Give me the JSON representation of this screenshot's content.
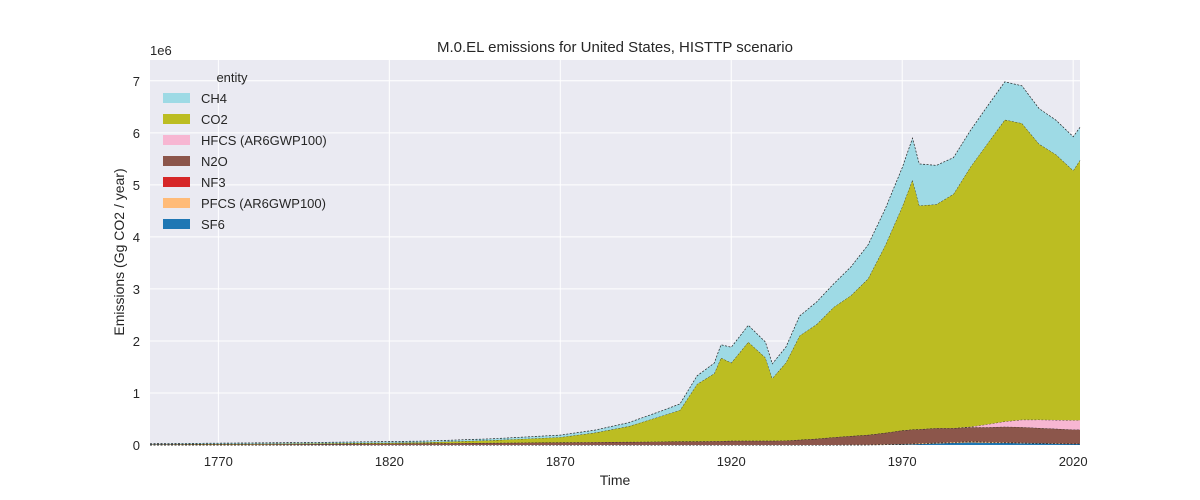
{
  "chart_data": {
    "type": "area",
    "stacked": true,
    "title": "M.0.EL emissions for United States, HISTTP scenario",
    "xlabel": "Time",
    "ylabel": "Emissions (Gg CO2 / year)",
    "y_offset_label": "1e6",
    "xlim": [
      1750,
      2022
    ],
    "ylim": [
      0,
      7.4
    ],
    "x_ticks": [
      1770,
      1820,
      1870,
      1920,
      1970,
      2020
    ],
    "x_tick_labels": [
      "1770",
      "1820",
      "1870",
      "1920",
      "1970",
      "2020"
    ],
    "y_ticks": [
      0,
      1,
      2,
      3,
      4,
      5,
      6,
      7
    ],
    "y_tick_labels": [
      "0",
      "1",
      "2",
      "3",
      "4",
      "5",
      "6",
      "7"
    ],
    "grid": true,
    "legend": {
      "title": "entity",
      "placement": "upper-left",
      "entries": [
        "CH4",
        "CO2",
        "HFCS (AR6GWP100)",
        "N2O",
        "NF3",
        "PFCS (AR6GWP100)",
        "SF6"
      ]
    },
    "x": [
      1750,
      1800,
      1830,
      1850,
      1870,
      1880,
      1890,
      1900,
      1905,
      1910,
      1915,
      1917,
      1920,
      1925,
      1930,
      1932,
      1936,
      1940,
      1945,
      1950,
      1955,
      1960,
      1965,
      1970,
      1973,
      1975,
      1980,
      1985,
      1990,
      1995,
      2000,
      2005,
      2010,
      2015,
      2020,
      2022
    ],
    "series": [
      {
        "name": "SF6",
        "color": "#1f77b4",
        "values": [
          0,
          0,
          0,
          0,
          0,
          0,
          0,
          0,
          0,
          0,
          0,
          0,
          0,
          0,
          0,
          0,
          0,
          0,
          0,
          0,
          0,
          0,
          0.005,
          0.01,
          0.015,
          0.02,
          0.03,
          0.04,
          0.05,
          0.045,
          0.04,
          0.035,
          0.03,
          0.025,
          0.02,
          0.02
        ]
      },
      {
        "name": "PFCS (AR6GWP100)",
        "color": "#ffbb78",
        "values": [
          0,
          0,
          0,
          0,
          0,
          0,
          0,
          0,
          0,
          0,
          0,
          0,
          0,
          0,
          0,
          0,
          0,
          0,
          0,
          0,
          0.003,
          0.005,
          0.008,
          0.01,
          0.012,
          0.012,
          0.015,
          0.015,
          0.02,
          0.015,
          0.01,
          0.008,
          0.006,
          0.005,
          0.005,
          0.005
        ]
      },
      {
        "name": "NF3",
        "color": "#d62728",
        "values": [
          0,
          0,
          0,
          0,
          0,
          0,
          0,
          0,
          0,
          0,
          0,
          0,
          0,
          0,
          0,
          0,
          0,
          0,
          0,
          0,
          0,
          0,
          0,
          0,
          0,
          0,
          0,
          0,
          0,
          0,
          0.001,
          0.001,
          0.001,
          0.001,
          0.001,
          0.001
        ]
      },
      {
        "name": "N2O",
        "color": "#8c564b",
        "values": [
          0.01,
          0.02,
          0.03,
          0.04,
          0.05,
          0.055,
          0.06,
          0.065,
          0.07,
          0.07,
          0.075,
          0.075,
          0.08,
          0.08,
          0.08,
          0.08,
          0.085,
          0.1,
          0.12,
          0.15,
          0.17,
          0.19,
          0.22,
          0.26,
          0.27,
          0.27,
          0.28,
          0.27,
          0.27,
          0.28,
          0.3,
          0.3,
          0.29,
          0.28,
          0.27,
          0.27
        ]
      },
      {
        "name": "HFCS (AR6GWP100)",
        "color": "#f7b6d2",
        "values": [
          0,
          0,
          0,
          0,
          0,
          0,
          0,
          0,
          0,
          0,
          0,
          0,
          0,
          0,
          0,
          0,
          0,
          0,
          0,
          0,
          0,
          0,
          0,
          0,
          0,
          0,
          0,
          0,
          0.01,
          0.06,
          0.1,
          0.14,
          0.16,
          0.17,
          0.18,
          0.18
        ]
      },
      {
        "name": "CO2",
        "color": "#bcbd22",
        "values": [
          0.005,
          0.01,
          0.02,
          0.05,
          0.1,
          0.18,
          0.3,
          0.5,
          0.6,
          1.1,
          1.3,
          1.6,
          1.5,
          1.9,
          1.6,
          1.2,
          1.5,
          2.0,
          2.2,
          2.5,
          2.7,
          3.0,
          3.6,
          4.3,
          4.8,
          4.3,
          4.3,
          4.5,
          5.0,
          5.4,
          5.8,
          5.7,
          5.3,
          5.1,
          4.8,
          5.0
        ]
      },
      {
        "name": "CH4",
        "color": "#9edae5",
        "values": [
          0.01,
          0.02,
          0.025,
          0.03,
          0.04,
          0.05,
          0.07,
          0.1,
          0.12,
          0.16,
          0.2,
          0.25,
          0.3,
          0.32,
          0.3,
          0.28,
          0.3,
          0.38,
          0.43,
          0.45,
          0.55,
          0.65,
          0.7,
          0.75,
          0.8,
          0.8,
          0.75,
          0.7,
          0.7,
          0.72,
          0.73,
          0.72,
          0.68,
          0.66,
          0.65,
          0.63
        ]
      }
    ]
  }
}
